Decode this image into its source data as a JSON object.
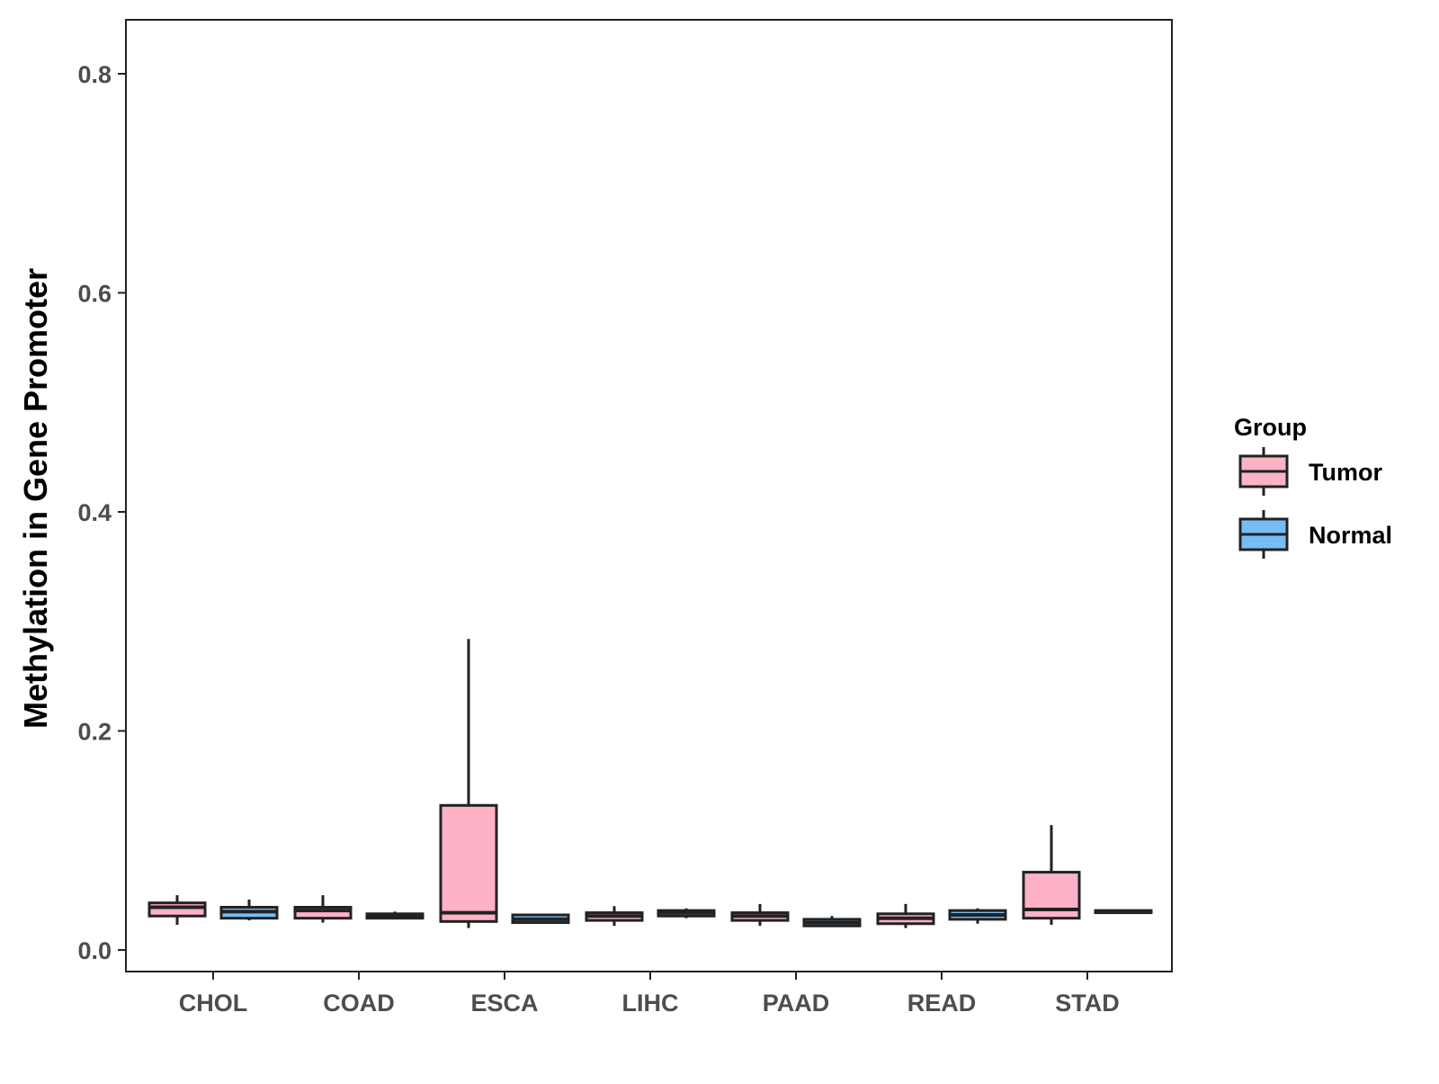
{
  "chart_data": {
    "type": "boxplot",
    "title": "",
    "xlabel": "",
    "ylabel": "Methylation in Gene Promoter",
    "ylim": [
      -0.02,
      0.85
    ],
    "yticks": [
      0.0,
      0.2,
      0.4,
      0.6,
      0.8
    ],
    "ytick_labels": [
      "0.0",
      "0.2",
      "0.4",
      "0.6",
      "0.8"
    ],
    "grid": false,
    "categories": [
      "CHOL",
      "COAD",
      "ESCA",
      "LIHC",
      "PAAD",
      "READ",
      "STAD"
    ],
    "legend": {
      "title": "Group",
      "position": "right",
      "entries": [
        "Tumor",
        "Normal"
      ]
    },
    "series": [
      {
        "name": "Tumor",
        "color": "#ffb1c5",
        "boxes": [
          {
            "category": "CHOL",
            "whisker_low": 0.023,
            "q1": 0.031,
            "median": 0.039,
            "q3": 0.043,
            "whisker_high": 0.05
          },
          {
            "category": "COAD",
            "whisker_low": 0.025,
            "q1": 0.029,
            "median": 0.036,
            "q3": 0.039,
            "whisker_high": 0.05
          },
          {
            "category": "ESCA",
            "whisker_low": 0.02,
            "q1": 0.026,
            "median": 0.034,
            "q3": 0.132,
            "whisker_high": 0.284
          },
          {
            "category": "LIHC",
            "whisker_low": 0.022,
            "q1": 0.027,
            "median": 0.031,
            "q3": 0.034,
            "whisker_high": 0.04
          },
          {
            "category": "PAAD",
            "whisker_low": 0.022,
            "q1": 0.027,
            "median": 0.031,
            "q3": 0.034,
            "whisker_high": 0.042
          },
          {
            "category": "READ",
            "whisker_low": 0.02,
            "q1": 0.024,
            "median": 0.029,
            "q3": 0.033,
            "whisker_high": 0.042
          },
          {
            "category": "STAD",
            "whisker_low": 0.023,
            "q1": 0.029,
            "median": 0.037,
            "q3": 0.071,
            "whisker_high": 0.114
          }
        ]
      },
      {
        "name": "Normal",
        "color": "#77bdf5",
        "boxes": [
          {
            "category": "CHOL",
            "whisker_low": 0.027,
            "q1": 0.029,
            "median": 0.035,
            "q3": 0.039,
            "whisker_high": 0.046
          },
          {
            "category": "COAD",
            "whisker_low": 0.028,
            "q1": 0.029,
            "median": 0.031,
            "q3": 0.033,
            "whisker_high": 0.035
          },
          {
            "category": "ESCA",
            "whisker_low": 0.024,
            "q1": 0.025,
            "median": 0.028,
            "q3": 0.032,
            "whisker_high": 0.033
          },
          {
            "category": "LIHC",
            "whisker_low": 0.029,
            "q1": 0.031,
            "median": 0.034,
            "q3": 0.036,
            "whisker_high": 0.038
          },
          {
            "category": "PAAD",
            "whisker_low": 0.021,
            "q1": 0.022,
            "median": 0.025,
            "q3": 0.028,
            "whisker_high": 0.031
          },
          {
            "category": "READ",
            "whisker_low": 0.024,
            "q1": 0.028,
            "median": 0.032,
            "q3": 0.036,
            "whisker_high": 0.038
          },
          {
            "category": "STAD",
            "whisker_low": 0.033,
            "q1": 0.034,
            "median": 0.035,
            "q3": 0.036,
            "whisker_high": 0.037
          }
        ]
      }
    ]
  }
}
